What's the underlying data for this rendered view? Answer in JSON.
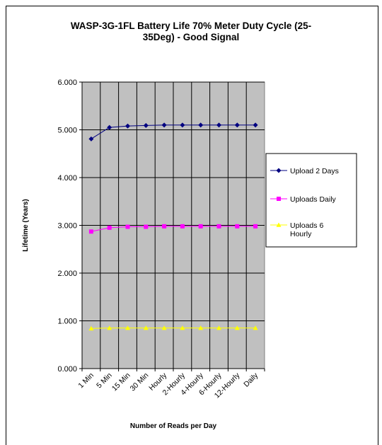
{
  "chart_data": {
    "type": "line",
    "title": "WASP-3G-1FL Battery Life 70% Meter Duty Cycle (25-35Deg) - Good Signal",
    "title_lines": [
      "WASP-3G-1FL Battery Life 70% Meter Duty Cycle (25-",
      "35Deg) - Good Signal"
    ],
    "xlabel": "Number of Reads per Day",
    "ylabel": "Lifetime (Years)",
    "categories": [
      "1 Min",
      "5 Min",
      "15 Min",
      "30 Min",
      "Hourly",
      "2-Hourly",
      "4-Hourly",
      "6-Hourly",
      "12-Hourly",
      "Daily"
    ],
    "ylim": [
      0,
      6
    ],
    "yticks": [
      "0.000",
      "1.000",
      "2.000",
      "3.000",
      "4.000",
      "5.000",
      "6.000"
    ],
    "grid": true,
    "legend_position": "right",
    "plot_background": "#c0c0c0",
    "series": [
      {
        "name": "Upload 2 Days",
        "legend_lines": [
          "Upload 2 Days"
        ],
        "color": "#000080",
        "marker": "diamond",
        "values": [
          4.81,
          5.05,
          5.08,
          5.09,
          5.1,
          5.1,
          5.1,
          5.1,
          5.1,
          5.1
        ]
      },
      {
        "name": "Uploads Daily",
        "legend_lines": [
          "Uploads Daily"
        ],
        "color": "#ff00ff",
        "marker": "square",
        "values": [
          2.87,
          2.95,
          2.97,
          2.97,
          2.98,
          2.98,
          2.98,
          2.98,
          2.98,
          2.98
        ]
      },
      {
        "name": "Uploads 6 Hourly",
        "legend_lines": [
          "Uploads 6",
          "Hourly"
        ],
        "color": "#ffff00",
        "marker": "triangle",
        "values": [
          0.84,
          0.85,
          0.85,
          0.85,
          0.85,
          0.85,
          0.85,
          0.85,
          0.85,
          0.85
        ]
      }
    ]
  }
}
